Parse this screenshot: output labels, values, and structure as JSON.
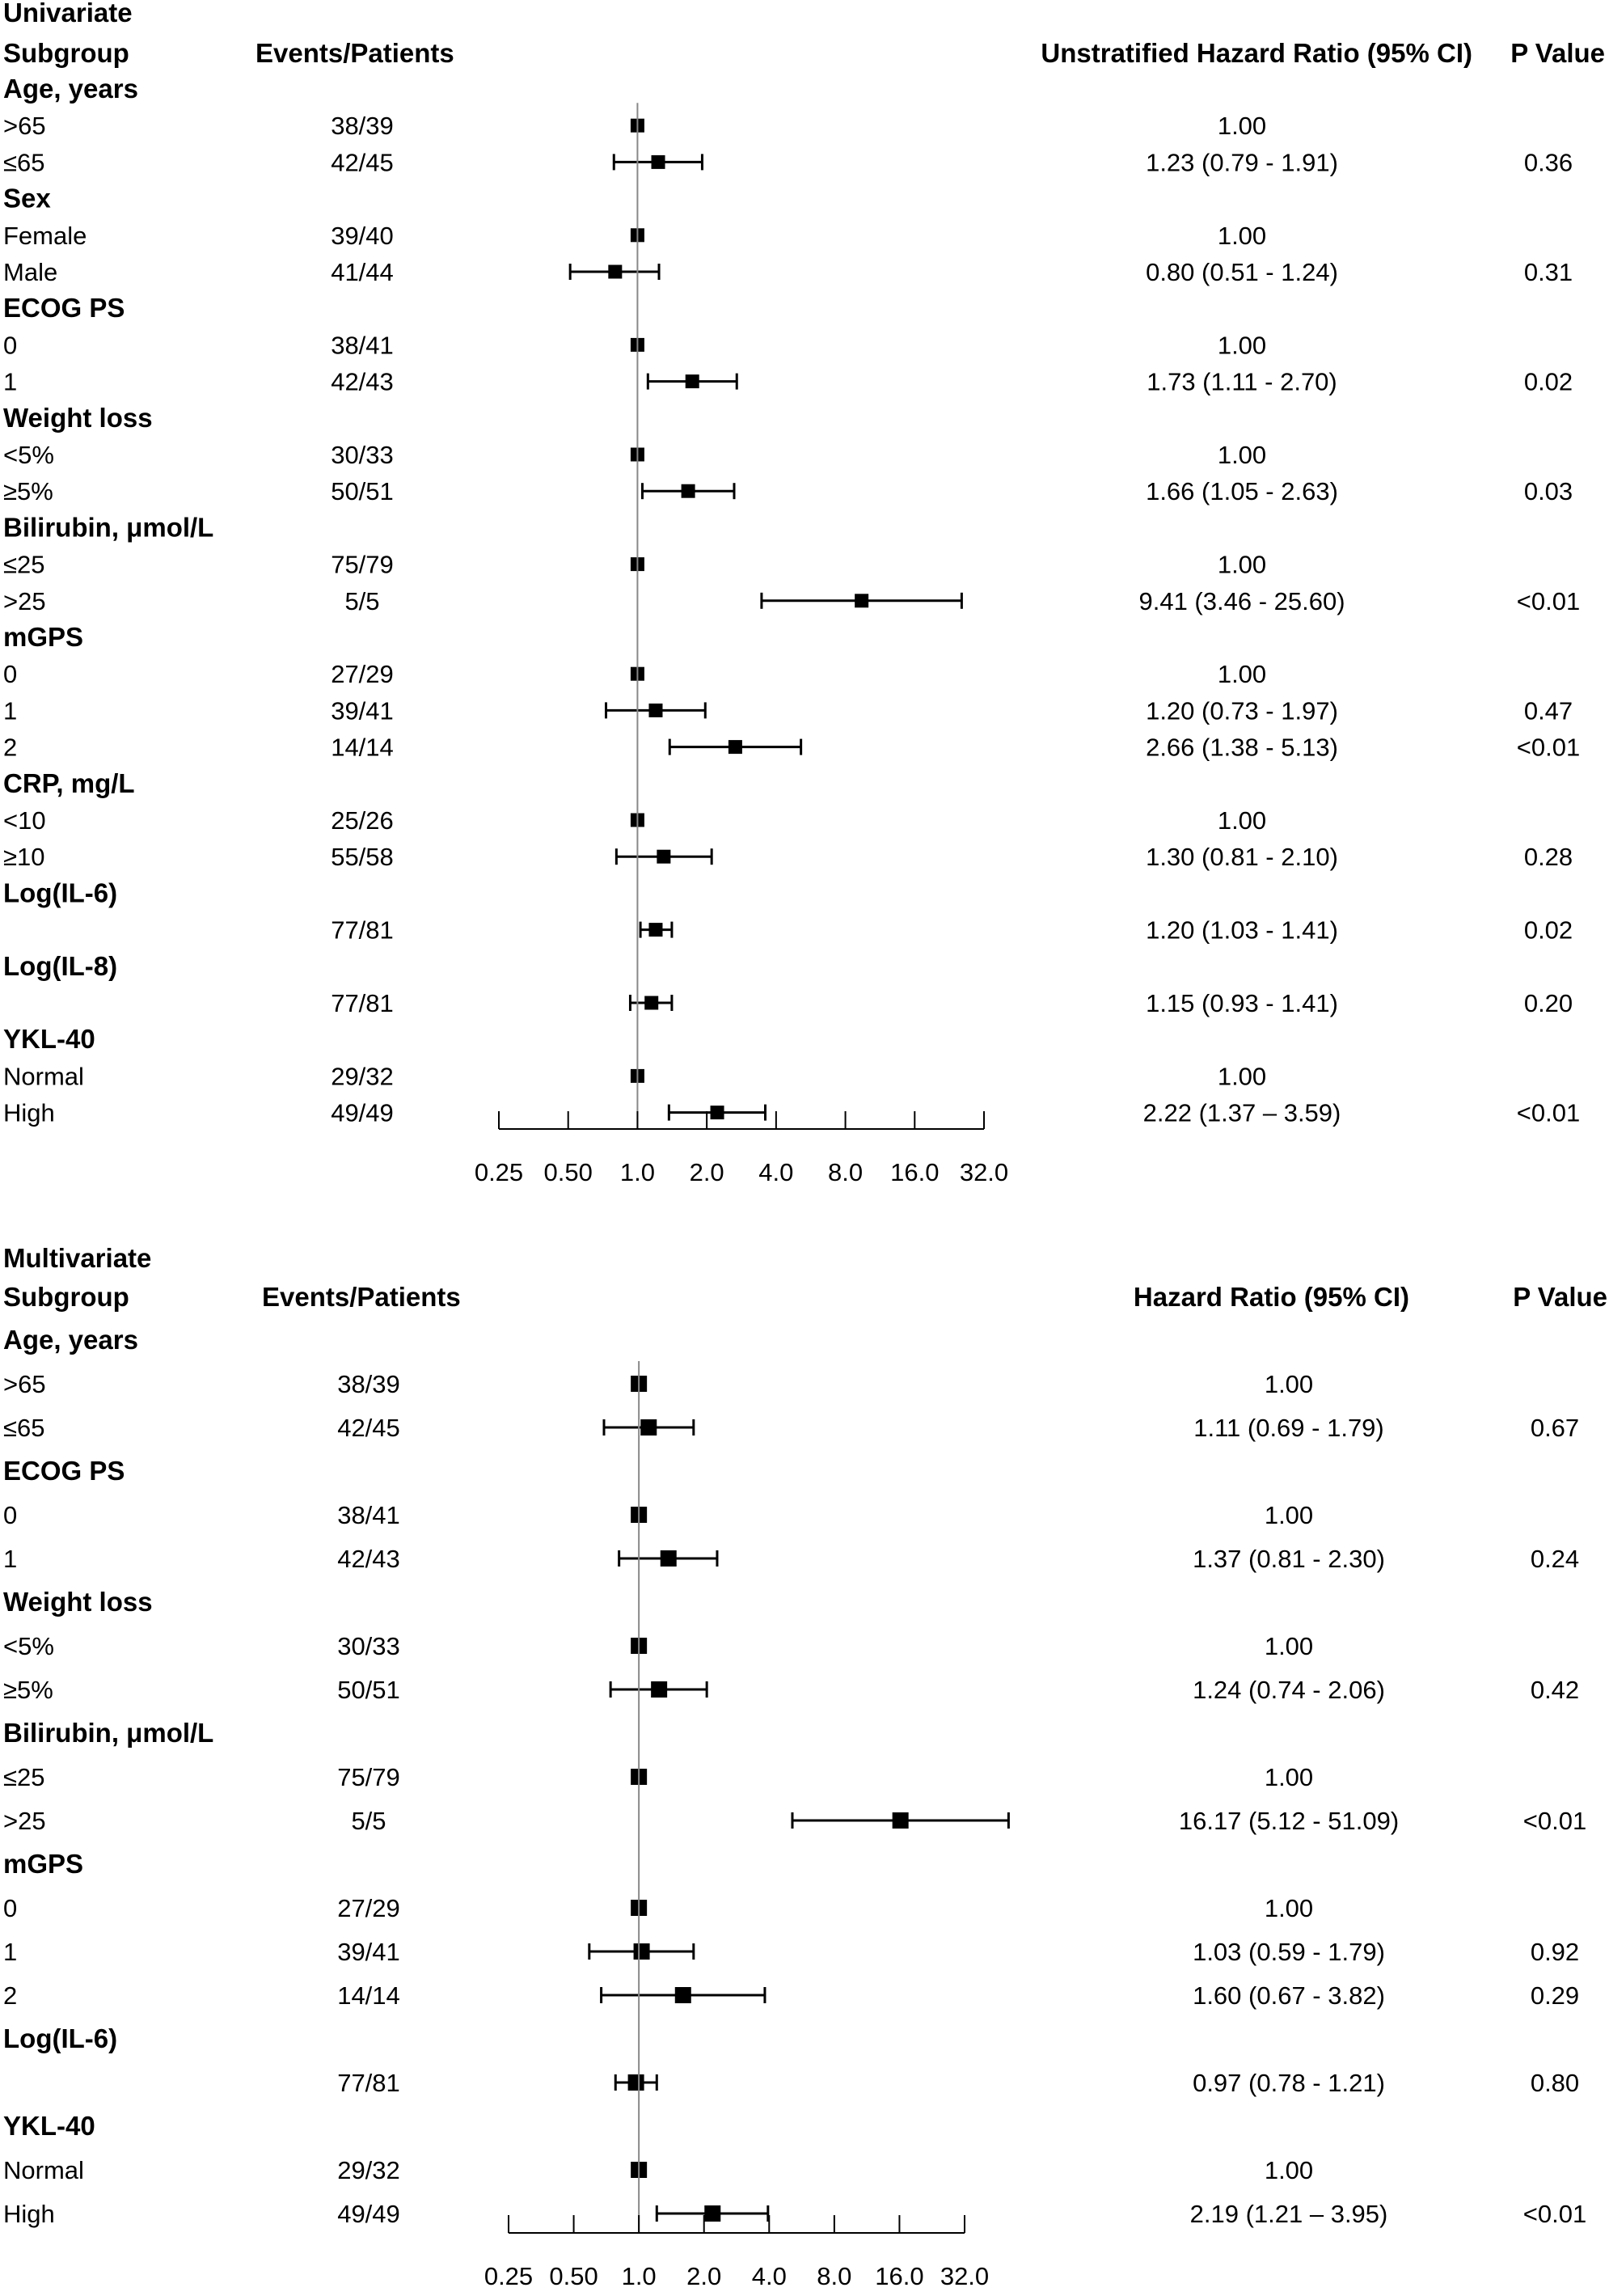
{
  "chart_data": [
    {
      "type": "forest",
      "title": "Univariate",
      "headers": {
        "subgroup": "Subgroup",
        "events": "Events/Patients",
        "hr": "Unstratified Hazard Ratio (95% CI)",
        "p": "P Value"
      },
      "x_scale": "log2",
      "xlim": [
        0.25,
        32.0
      ],
      "tick_labels": [
        "0.25",
        "0.50",
        "1.0",
        "2.0",
        "4.0",
        "8.0",
        "16.0",
        "32.0"
      ],
      "reference_line": 1.0,
      "groups": [
        {
          "name": "Age, years",
          "rows": [
            {
              "label": ">65",
              "events": "38/39",
              "hr": 1.0,
              "hr_text": "1.00",
              "p": ""
            },
            {
              "label": "≤65",
              "events": "42/45",
              "hr": 1.23,
              "lo": 0.79,
              "hi": 1.91,
              "hr_text": "1.23 (0.79 - 1.91)",
              "p": "0.36"
            }
          ]
        },
        {
          "name": "Sex",
          "rows": [
            {
              "label": "Female",
              "events": "39/40",
              "hr": 1.0,
              "hr_text": "1.00",
              "p": ""
            },
            {
              "label": "Male",
              "events": "41/44",
              "hr": 0.8,
              "lo": 0.51,
              "hi": 1.24,
              "hr_text": "0.80 (0.51 - 1.24)",
              "p": "0.31"
            }
          ]
        },
        {
          "name": "ECOG PS",
          "rows": [
            {
              "label": "0",
              "events": "38/41",
              "hr": 1.0,
              "hr_text": "1.00",
              "p": ""
            },
            {
              "label": "1",
              "events": "42/43",
              "hr": 1.73,
              "lo": 1.11,
              "hi": 2.7,
              "hr_text": "1.73 (1.11 - 2.70)",
              "p": "0.02"
            }
          ]
        },
        {
          "name": "Weight loss",
          "rows": [
            {
              "label": "<5%",
              "events": "30/33",
              "hr": 1.0,
              "hr_text": "1.00",
              "p": ""
            },
            {
              "label": "≥5%",
              "events": "50/51",
              "hr": 1.66,
              "lo": 1.05,
              "hi": 2.63,
              "hr_text": "1.66 (1.05 - 2.63)",
              "p": "0.03"
            }
          ]
        },
        {
          "name": "Bilirubin, μmol/L",
          "rows": [
            {
              "label": "≤25",
              "events": "75/79",
              "hr": 1.0,
              "hr_text": "1.00",
              "p": ""
            },
            {
              "label": ">25",
              "events": "5/5",
              "hr": 9.41,
              "lo": 3.46,
              "hi": 25.6,
              "hr_text": "9.41 (3.46 - 25.60)",
              "p": "<0.01"
            }
          ]
        },
        {
          "name": "mGPS",
          "rows": [
            {
              "label": "0",
              "events": "27/29",
              "hr": 1.0,
              "hr_text": "1.00",
              "p": ""
            },
            {
              "label": "1",
              "events": "39/41",
              "hr": 1.2,
              "lo": 0.73,
              "hi": 1.97,
              "hr_text": "1.20 (0.73 - 1.97)",
              "p": "0.47"
            },
            {
              "label": "2",
              "events": "14/14",
              "hr": 2.66,
              "lo": 1.38,
              "hi": 5.13,
              "hr_text": "2.66 (1.38 - 5.13)",
              "p": "<0.01"
            }
          ]
        },
        {
          "name": "CRP, mg/L",
          "rows": [
            {
              "label": "<10",
              "events": "25/26",
              "hr": 1.0,
              "hr_text": "1.00",
              "p": ""
            },
            {
              "label": "≥10",
              "events": "55/58",
              "hr": 1.3,
              "lo": 0.81,
              "hi": 2.1,
              "hr_text": "1.30 (0.81 - 2.10)",
              "p": "0.28"
            }
          ]
        },
        {
          "name": "Log(IL-6)",
          "rows": [
            {
              "label": "",
              "events": "77/81",
              "hr": 1.2,
              "lo": 1.03,
              "hi": 1.41,
              "hr_text": "1.20 (1.03 - 1.41)",
              "p": "0.02"
            }
          ]
        },
        {
          "name": "Log(IL-8)",
          "rows": [
            {
              "label": "",
              "events": "77/81",
              "hr": 1.15,
              "lo": 0.93,
              "hi": 1.41,
              "hr_text": "1.15 (0.93 - 1.41)",
              "p": "0.20"
            }
          ]
        },
        {
          "name": "YKL-40",
          "rows": [
            {
              "label": "Normal",
              "events": "29/32",
              "hr": 1.0,
              "hr_text": "1.00",
              "p": ""
            },
            {
              "label": "High",
              "events": "49/49",
              "hr": 2.22,
              "lo": 1.37,
              "hi": 3.59,
              "hr_text": "2.22 (1.37 – 3.59)",
              "p": "<0.01"
            }
          ]
        }
      ]
    },
    {
      "type": "forest",
      "title": "Multivariate",
      "headers": {
        "subgroup": "Subgroup",
        "events": "Events/Patients",
        "hr": "Hazard Ratio (95% CI)",
        "p": "P Value"
      },
      "x_scale": "log2",
      "xlim": [
        0.25,
        32.0
      ],
      "tick_labels": [
        "0.25",
        "0.50",
        "1.0",
        "2.0",
        "4.0",
        "8.0",
        "16.0",
        "32.0"
      ],
      "reference_line": 1.0,
      "groups": [
        {
          "name": "Age, years",
          "rows": [
            {
              "label": ">65",
              "events": "38/39",
              "hr": 1.0,
              "hr_text": "1.00",
              "p": ""
            },
            {
              "label": "≤65",
              "events": "42/45",
              "hr": 1.11,
              "lo": 0.69,
              "hi": 1.79,
              "hr_text": "1.11 (0.69 - 1.79)",
              "p": "0.67"
            }
          ]
        },
        {
          "name": "ECOG PS",
          "rows": [
            {
              "label": "0",
              "events": "38/41",
              "hr": 1.0,
              "hr_text": "1.00",
              "p": ""
            },
            {
              "label": "1",
              "events": "42/43",
              "hr": 1.37,
              "lo": 0.81,
              "hi": 2.3,
              "hr_text": "1.37 (0.81 - 2.30)",
              "p": "0.24"
            }
          ]
        },
        {
          "name": "Weight loss",
          "rows": [
            {
              "label": "<5%",
              "events": "30/33",
              "hr": 1.0,
              "hr_text": "1.00",
              "p": ""
            },
            {
              "label": "≥5%",
              "events": "50/51",
              "hr": 1.24,
              "lo": 0.74,
              "hi": 2.06,
              "hr_text": "1.24 (0.74 - 2.06)",
              "p": "0.42"
            }
          ]
        },
        {
          "name": "Bilirubin, μmol/L",
          "rows": [
            {
              "label": "≤25",
              "events": "75/79",
              "hr": 1.0,
              "hr_text": "1.00",
              "p": ""
            },
            {
              "label": ">25",
              "events": "5/5",
              "hr": 16.17,
              "lo": 5.12,
              "hi": 51.09,
              "hr_text": "16.17 (5.12 - 51.09)",
              "p": "<0.01"
            }
          ]
        },
        {
          "name": "mGPS",
          "rows": [
            {
              "label": "0",
              "events": "27/29",
              "hr": 1.0,
              "hr_text": "1.00",
              "p": ""
            },
            {
              "label": "1",
              "events": "39/41",
              "hr": 1.03,
              "lo": 0.59,
              "hi": 1.79,
              "hr_text": "1.03 (0.59 - 1.79)",
              "p": "0.92"
            },
            {
              "label": "2",
              "events": "14/14",
              "hr": 1.6,
              "lo": 0.67,
              "hi": 3.82,
              "hr_text": "1.60 (0.67 - 3.82)",
              "p": "0.29"
            }
          ]
        },
        {
          "name": "Log(IL-6)",
          "rows": [
            {
              "label": "",
              "events": "77/81",
              "hr": 0.97,
              "lo": 0.78,
              "hi": 1.21,
              "hr_text": "0.97 (0.78 - 1.21)",
              "p": "0.80"
            }
          ]
        },
        {
          "name": "YKL-40",
          "rows": [
            {
              "label": "Normal",
              "events": "29/32",
              "hr": 1.0,
              "hr_text": "1.00",
              "p": ""
            },
            {
              "label": "High",
              "events": "49/49",
              "hr": 2.19,
              "lo": 1.21,
              "hi": 3.95,
              "hr_text": "2.19 (1.21 – 3.95)",
              "p": "<0.01"
            }
          ]
        }
      ]
    }
  ]
}
